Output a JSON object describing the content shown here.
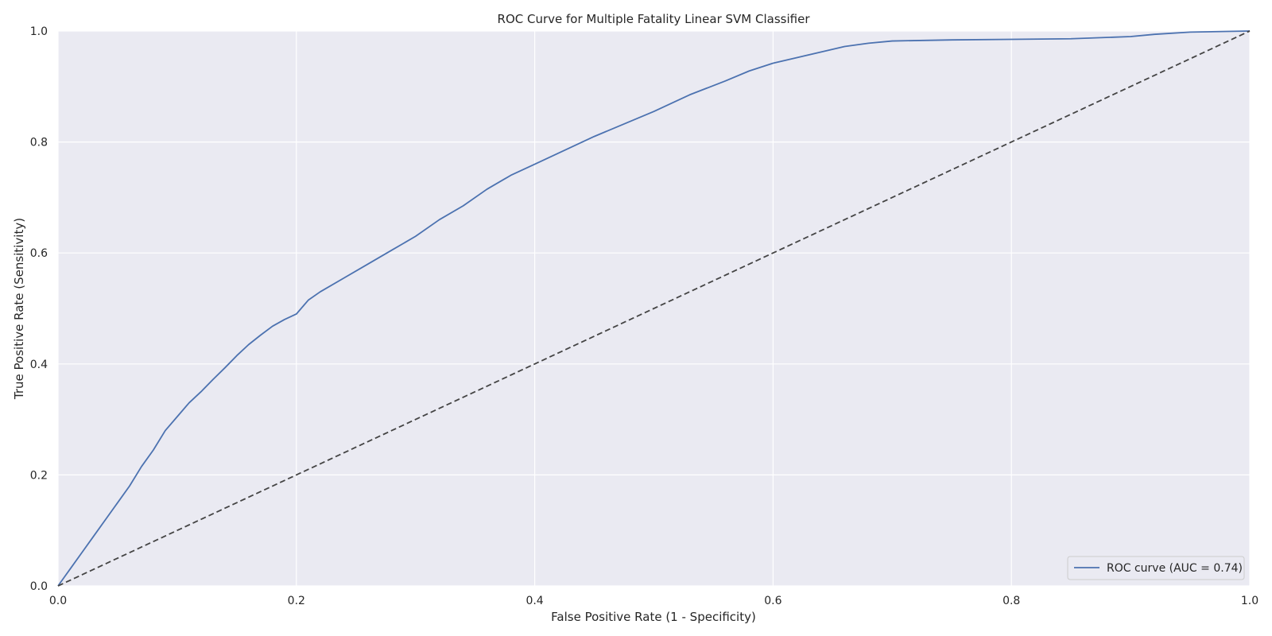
{
  "chart_data": {
    "type": "line",
    "title": "ROC Curve for Multiple Fatality Linear SVM Classifier",
    "xlabel": "False Positive Rate (1 - Specificity)",
    "ylabel": "True Positive Rate (Sensitivity)",
    "xlim": [
      0,
      1
    ],
    "ylim": [
      0,
      1
    ],
    "xticks": [
      "0.0",
      "0.2",
      "0.4",
      "0.6",
      "0.8",
      "1.0"
    ],
    "yticks": [
      "0.0",
      "0.2",
      "0.4",
      "0.6",
      "0.8",
      "1.0"
    ],
    "grid": true,
    "legend_position": "lower-right",
    "series": [
      {
        "name": "ROC curve (AUC = 0.74)",
        "color": "#4c72b0",
        "style": "solid",
        "x": [
          0.0,
          0.005,
          0.01,
          0.02,
          0.03,
          0.04,
          0.05,
          0.06,
          0.07,
          0.08,
          0.09,
          0.1,
          0.11,
          0.12,
          0.13,
          0.14,
          0.15,
          0.16,
          0.17,
          0.18,
          0.19,
          0.2,
          0.21,
          0.22,
          0.24,
          0.26,
          0.28,
          0.3,
          0.32,
          0.34,
          0.36,
          0.38,
          0.4,
          0.42,
          0.45,
          0.5,
          0.53,
          0.56,
          0.58,
          0.6,
          0.62,
          0.64,
          0.66,
          0.68,
          0.7,
          0.75,
          0.8,
          0.85,
          0.9,
          0.92,
          0.95,
          1.0
        ],
        "y": [
          0.0,
          0.015,
          0.03,
          0.06,
          0.09,
          0.12,
          0.15,
          0.18,
          0.215,
          0.245,
          0.28,
          0.305,
          0.33,
          0.35,
          0.372,
          0.393,
          0.415,
          0.435,
          0.452,
          0.468,
          0.48,
          0.49,
          0.515,
          0.53,
          0.555,
          0.58,
          0.605,
          0.63,
          0.66,
          0.685,
          0.715,
          0.74,
          0.76,
          0.78,
          0.81,
          0.855,
          0.885,
          0.91,
          0.928,
          0.942,
          0.952,
          0.962,
          0.972,
          0.978,
          0.982,
          0.984,
          0.985,
          0.986,
          0.99,
          0.994,
          0.998,
          1.0
        ]
      },
      {
        "name": "",
        "color": "#444444",
        "style": "dashed",
        "x": [
          0,
          1
        ],
        "y": [
          0,
          1
        ]
      }
    ]
  }
}
